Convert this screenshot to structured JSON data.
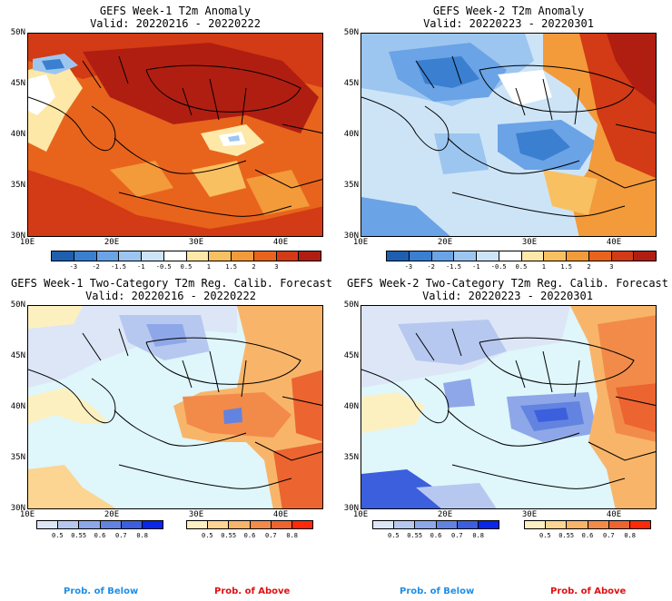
{
  "panels": [
    {
      "title": "GEFS Week-1 T2m Anomaly",
      "valid": "Valid: 20220216 - 20220222"
    },
    {
      "title": "GEFS Week-2 T2m Anomaly",
      "valid": "Valid: 20220223 - 20220301"
    },
    {
      "title": "GEFS Week-1 Two-Category T2m Reg. Calib. Forecast",
      "valid": "Valid: 20220216 - 20220222"
    },
    {
      "title": "GEFS Week-2 Two-Category T2m Reg. Calib. Forecast",
      "valid": "Valid: 20220223 - 20220301"
    }
  ],
  "axes": {
    "lat_ticks": [
      "50N",
      "45N",
      "40N",
      "35N",
      "30N"
    ],
    "lon_ticks": [
      "10E",
      "20E",
      "30E",
      "40E"
    ]
  },
  "anomaly_colorbar": {
    "labels": [
      "-3",
      "-2",
      "-1.5",
      "-1",
      "-0.5",
      "0.5",
      "1",
      "1.5",
      "2",
      "3"
    ],
    "colors": [
      "#1f5fb0",
      "#3a7fd0",
      "#6aa3e6",
      "#9cc6f0",
      "#cde4f7",
      "#ffffff",
      "#fde8a8",
      "#f8c060",
      "#f39a3a",
      "#e8641c",
      "#d23b15",
      "#b01e12"
    ]
  },
  "prob_below_colorbar": {
    "labels": [
      "0.5",
      "0.55",
      "0.6",
      "0.7",
      "0.8"
    ],
    "colors": [
      "#dde6f7",
      "#b7c8f0",
      "#8ea7e8",
      "#6383e0",
      "#3b5fdd",
      "#0a26e8"
    ]
  },
  "prob_above_colorbar": {
    "labels": [
      "0.5",
      "0.55",
      "0.6",
      "0.7",
      "0.8"
    ],
    "colors": [
      "#fdf0c0",
      "#fbd591",
      "#f8b56a",
      "#f28b4a",
      "#ec6430",
      "#ff2a0a"
    ]
  },
  "legend": {
    "below": "Prob. of Below",
    "above": "Prob. of Above",
    "below_color": "#1e8ee8",
    "above_color": "#e01010"
  },
  "map_colors": {
    "sea_prob": "#dff6fb",
    "land_neutral": "#fbfbf3"
  }
}
